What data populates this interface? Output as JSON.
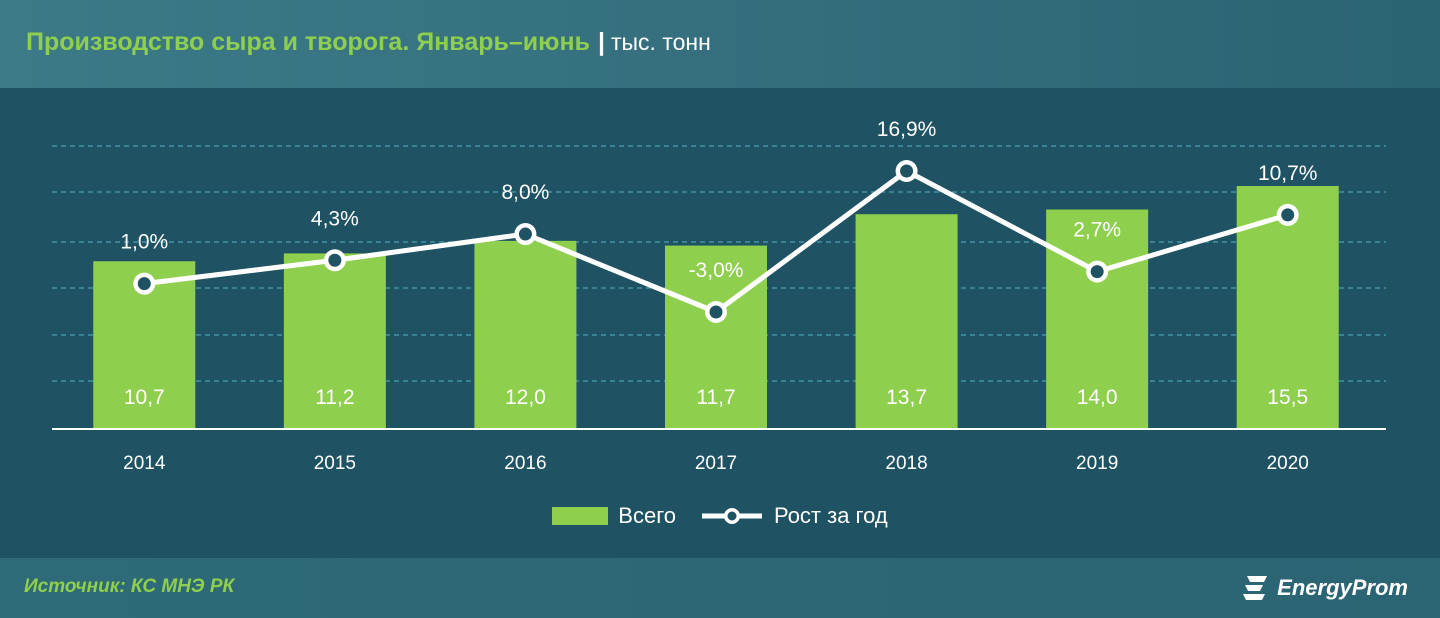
{
  "header": {
    "title": "Производство сыра и творога. Январь–июнь",
    "separator": "|",
    "unit": "тыс. тонн"
  },
  "footer": {
    "source": "Источник: КС МНЭ РК",
    "brand": "EnergyProm"
  },
  "legend": {
    "bars_label": "Всего",
    "line_label": "Рост за год"
  },
  "colors": {
    "bar": "#8fcf4e",
    "line": "#ffffff",
    "grid": "#4aa0b4",
    "accent_title": "#8fcf4e"
  },
  "chart_data": {
    "type": "bar",
    "categories": [
      "2014",
      "2015",
      "2016",
      "2017",
      "2018",
      "2019",
      "2020"
    ],
    "series": [
      {
        "name": "Всего",
        "type": "bar",
        "values": [
          10.7,
          11.2,
          12.0,
          11.7,
          13.7,
          14.0,
          15.5
        ],
        "labels": [
          "10,7",
          "11,2",
          "12,0",
          "11,7",
          "13,7",
          "14,0",
          "15,5"
        ]
      },
      {
        "name": "Рост за год",
        "type": "line",
        "values": [
          1.0,
          4.3,
          8.0,
          -3.0,
          16.9,
          2.7,
          10.7
        ],
        "labels": [
          "1,0%",
          "4,3%",
          "8,0%",
          "-3,0%",
          "16,9%",
          "2,7%",
          "10,7%"
        ]
      }
    ],
    "grid": true,
    "legend_position": "bottom"
  }
}
